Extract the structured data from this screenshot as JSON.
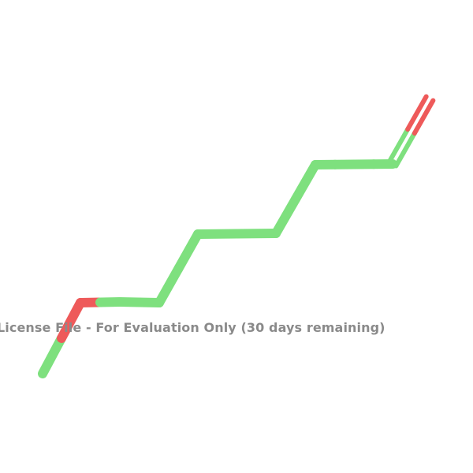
{
  "molecule": {
    "colors": {
      "carbon": "#7ee07e",
      "oxygen": "#ee5a5a",
      "background": "#ffffff"
    },
    "atoms": [
      {
        "id": "c1",
        "element": "C"
      },
      {
        "id": "o1",
        "element": "O"
      },
      {
        "id": "c2",
        "element": "C"
      },
      {
        "id": "c3",
        "element": "C"
      },
      {
        "id": "c4",
        "element": "C"
      },
      {
        "id": "c5",
        "element": "C"
      },
      {
        "id": "c6",
        "element": "C"
      },
      {
        "id": "c7",
        "element": "C"
      },
      {
        "id": "c8",
        "element": "C"
      },
      {
        "id": "o2",
        "element": "O"
      }
    ],
    "bonds": [
      {
        "from": "c1",
        "to": "o1",
        "order": 1
      },
      {
        "from": "o1",
        "to": "c2",
        "order": 1
      },
      {
        "from": "c2",
        "to": "c3",
        "order": 1
      },
      {
        "from": "c3",
        "to": "c4",
        "order": 1
      },
      {
        "from": "c4",
        "to": "c5",
        "order": 1
      },
      {
        "from": "c5",
        "to": "c6",
        "order": 1
      },
      {
        "from": "c6",
        "to": "c7",
        "order": 1
      },
      {
        "from": "c7",
        "to": "c8",
        "order": 1
      },
      {
        "from": "c8",
        "to": "o2",
        "order": 2
      }
    ]
  },
  "watermark": {
    "text": "License File - For Evaluation Only (30 days remaining)"
  }
}
